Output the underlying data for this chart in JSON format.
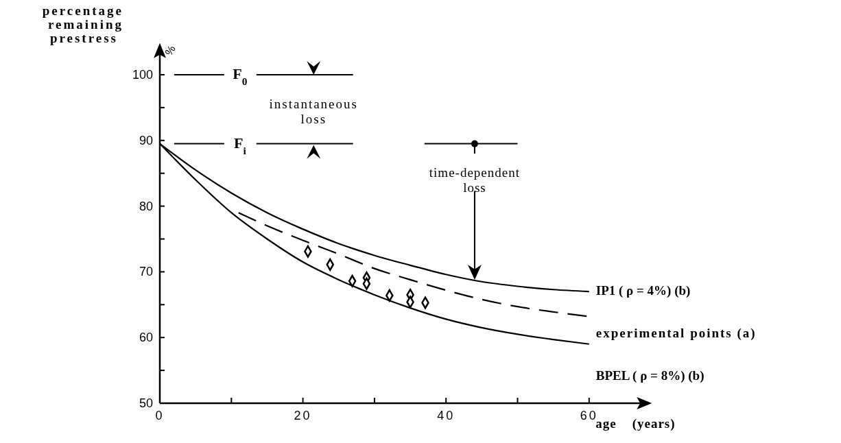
{
  "chart_data": {
    "type": "line",
    "xlabel": "age    (years)",
    "ylabel": "percentage remaining prestress",
    "xlim": [
      0,
      68
    ],
    "ylim": [
      50,
      104
    ],
    "xticks": [
      0,
      {
        "value": 10,
        "label": null
      },
      20,
      {
        "value": 30,
        "label": null
      },
      40,
      {
        "value": 50,
        "label": null
      },
      60
    ],
    "yticks": [
      50,
      {
        "value": 55,
        "label": null
      },
      60,
      {
        "value": 65,
        "label": null
      },
      70,
      {
        "value": 75,
        "label": null
      },
      80,
      {
        "value": 85,
        "label": null
      },
      90,
      {
        "value": 95,
        "label": null
      },
      100
    ],
    "grid": false,
    "series": [
      {
        "name": "IP1 ( ρ = 4%)  (b)",
        "color": "#000000",
        "line_style": "solid",
        "marker": "none",
        "x": [
          0,
          5,
          10,
          15,
          20,
          25,
          30,
          35,
          40,
          45,
          50,
          55,
          60
        ],
        "values": [
          89.5,
          85.5,
          82,
          79,
          76.5,
          74.3,
          72.5,
          71,
          69.6,
          68.5,
          67.8,
          67.3,
          67
        ]
      },
      {
        "name": "experimental points  (a)",
        "color": "#000000",
        "line_style": "dashed",
        "marker": "none",
        "x": [
          11,
          15,
          20,
          25,
          30,
          35,
          40,
          45,
          50,
          55,
          60
        ],
        "values": [
          79,
          77,
          74.8,
          72.7,
          70.5,
          68.8,
          67.2,
          65.8,
          64.7,
          63.9,
          63.2
        ]
      },
      {
        "name": "BPEL ( ρ = 8%)  (b)",
        "color": "#000000",
        "line_style": "solid",
        "marker": "none",
        "x": [
          0,
          5,
          10,
          15,
          20,
          25,
          30,
          35,
          40,
          45,
          50,
          55,
          60
        ],
        "values": [
          89.5,
          84,
          79,
          75,
          71.5,
          68.8,
          66.5,
          64.5,
          62.8,
          61.5,
          60.5,
          59.7,
          59
        ]
      },
      {
        "type": "scatter",
        "color": "#000000",
        "marker": "diamond",
        "x": [
          20.7,
          23.8,
          26.9,
          28.9,
          28.9,
          32.1,
          35,
          35,
          37.1
        ],
        "values": [
          73.1,
          71.1,
          68.6,
          69.1,
          68.2,
          66.4,
          66.5,
          65.4,
          65.3
        ]
      }
    ],
    "ref_lines": [
      {
        "axis": "y",
        "value": 100,
        "label": "F$_{0}$",
        "color": "#000000"
      },
      {
        "axis": "y",
        "value": 89.5,
        "label": "F$_{i}$",
        "color": "#000000"
      }
    ],
    "annotations": [
      "%",
      "instantaneous loss",
      "time-dependent loss"
    ]
  }
}
